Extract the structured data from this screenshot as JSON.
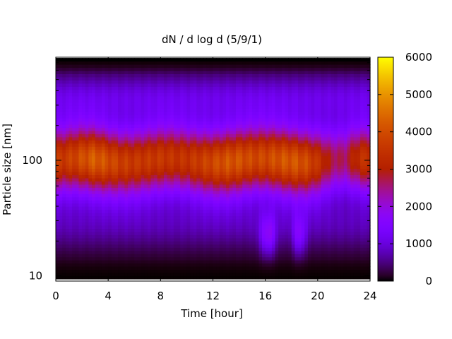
{
  "chart_data": {
    "type": "heatmap",
    "title": "dN / d log d (5/9/1)",
    "xlabel": "Time [hour]",
    "ylabel": "Particle size [nm]",
    "x_range": [
      0,
      24
    ],
    "x_ticks": [
      0,
      4,
      8,
      12,
      16,
      20,
      24
    ],
    "y_range_nm": [
      9,
      780
    ],
    "y_scale": "log",
    "y_ticks": [
      10,
      100
    ],
    "color_range": [
      0,
      6000
    ],
    "colorbar_ticks": [
      0,
      1000,
      2000,
      3000,
      4000,
      5000,
      6000
    ],
    "colormap": "gnuplot (black-blue-purple-red-orange-yellow)",
    "grid": false,
    "peak_size_nm": 100,
    "peak_value_approx": 4200,
    "time_profile": {
      "hours": [
        0,
        1,
        2,
        3,
        4,
        5,
        6,
        7,
        8,
        9,
        10,
        11,
        12,
        13,
        14,
        15,
        16,
        17,
        18,
        19,
        20,
        21,
        22,
        23,
        24
      ],
      "mode_peak_value": [
        3600,
        3700,
        4000,
        4300,
        4000,
        3700,
        3600,
        3600,
        3600,
        3500,
        3500,
        3700,
        3900,
        4100,
        4100,
        3900,
        3900,
        4100,
        4200,
        4000,
        3500,
        2800,
        2600,
        3300,
        3600
      ]
    }
  }
}
